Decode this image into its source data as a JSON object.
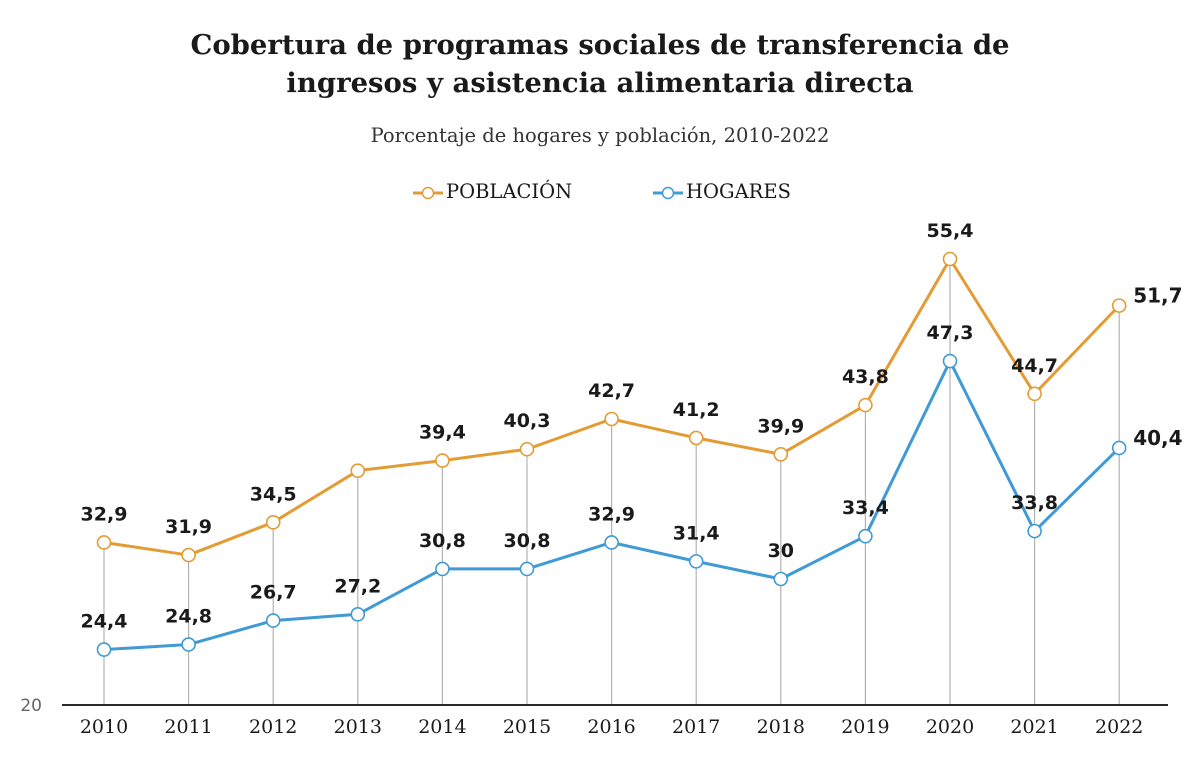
{
  "chart_data": {
    "type": "line",
    "title_lines": [
      "Cobertura de programas sociales de transferencia de",
      "ingresos y asistencia alimentaria directa"
    ],
    "subtitle": "Porcentaje de hogares y población, 2010-2022",
    "x": [
      "2010",
      "2011",
      "2012",
      "2013",
      "2014",
      "2015",
      "2016",
      "2017",
      "2018",
      "2019",
      "2020",
      "2021",
      "2022"
    ],
    "y_min_label": "20",
    "ylim": [
      20,
      58
    ],
    "legend_position": "top-center",
    "grid": false,
    "series": [
      {
        "name": "POBLACIÓN",
        "color": "#e39b34",
        "values": [
          32.9,
          31.9,
          34.5,
          38.6,
          39.4,
          40.3,
          42.7,
          41.2,
          39.9,
          43.8,
          55.4,
          44.7,
          51.7
        ],
        "labels": [
          "32,9",
          "31,9",
          "34,5",
          "",
          "39,4",
          "40,3",
          "42,7",
          "41,2",
          "39,9",
          "43,8",
          "55,4",
          "44,7",
          "51,7"
        ]
      },
      {
        "name": "HOGARES",
        "color": "#3f9ad6",
        "values": [
          24.4,
          24.8,
          26.7,
          27.2,
          30.8,
          30.8,
          32.9,
          31.4,
          30.0,
          33.4,
          47.3,
          33.8,
          40.4
        ],
        "labels": [
          "24,4",
          "24,8",
          "26,7",
          "27,2",
          "30,8",
          "30,8",
          "32,9",
          "31,4",
          "30",
          "33,4",
          "47,3",
          "33,8",
          "40,4"
        ]
      }
    ]
  }
}
